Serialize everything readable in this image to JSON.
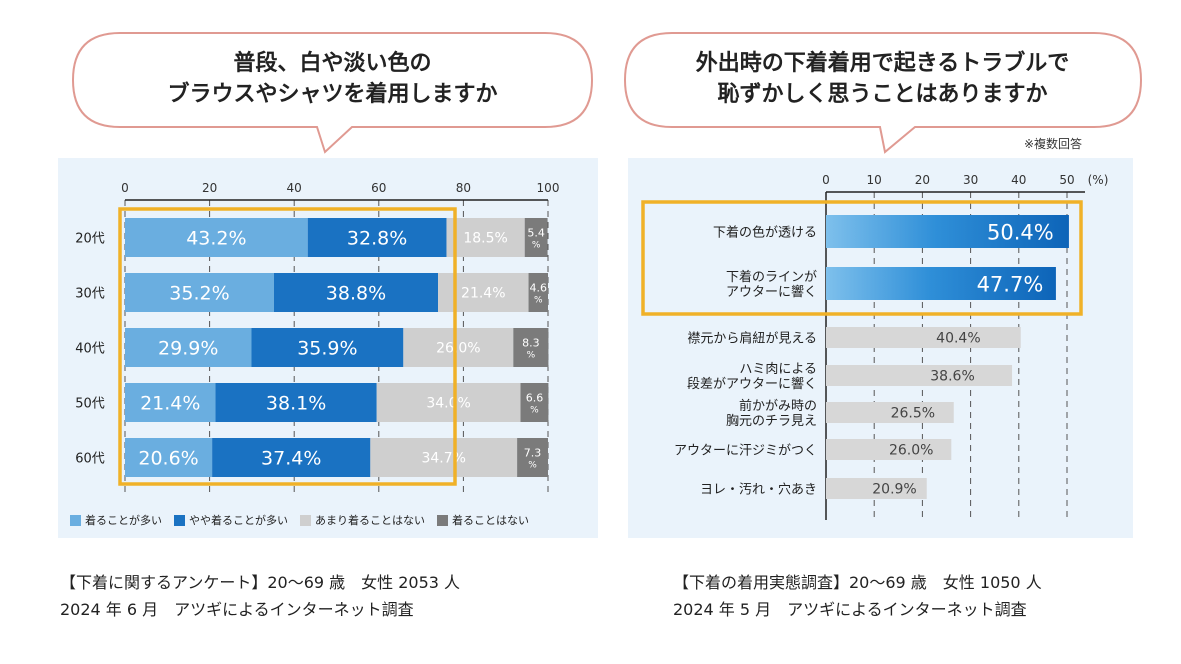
{
  "left": {
    "question_line1": "普段、白や淡い色の",
    "question_line2": "ブラウスやシャツを着用しますか",
    "source_line1": "【下着に関するアンケート】20〜69 歳　女性 2053 人",
    "source_line2": "2024 年 6 月　アツギによるインターネット調査"
  },
  "right": {
    "question_line1": "外出時の下着着用で起きるトラブルで",
    "question_line2": "恥ずかしく思うことはありますか",
    "note": "※複数回答",
    "source_line1": "【下着の着用実態調査】20〜69 歳　女性 1050 人",
    "source_line2": "2024 年 5 月　アツギによるインターネット調査"
  },
  "colors": {
    "light_blue": "#6aaee0",
    "blue": "#1a72c2",
    "light_gray": "#cfcfcf",
    "dark_gray": "#7b7b7b",
    "panel_bg": "#eaf3fb",
    "highlight": "#f0b128",
    "bubble_border": "#e09a92"
  },
  "chart_data": [
    {
      "type": "bar",
      "orientation": "horizontal",
      "stacked": true,
      "categories": [
        "20代",
        "30代",
        "40代",
        "50代",
        "60代"
      ],
      "series": [
        {
          "name": "着ることが多い",
          "values": [
            43.2,
            35.2,
            29.9,
            21.4,
            20.6
          ],
          "labels": [
            "43.2%",
            "35.2%",
            "29.9%",
            "21.4%",
            "20.6%"
          ]
        },
        {
          "name": "やや着ることが多い",
          "values": [
            32.8,
            38.8,
            35.9,
            38.1,
            37.4
          ],
          "labels": [
            "32.8%",
            "38.8%",
            "35.9%",
            "38.1%",
            "37.4%"
          ]
        },
        {
          "name": "あまり着ることはない",
          "values": [
            18.5,
            21.4,
            26.0,
            34.0,
            34.7
          ],
          "labels": [
            "18.5%",
            "21.4%",
            "26.0%",
            "34.0%",
            "34.7%"
          ]
        },
        {
          "name": "着ることはない",
          "values": [
            5.4,
            4.6,
            8.3,
            6.6,
            7.3
          ],
          "labels": [
            "5.4",
            "4.6",
            "8.3",
            "6.6",
            "7.3"
          ]
        }
      ],
      "percent_sign": "%",
      "xlim": [
        0,
        100
      ],
      "xticks": [
        "0",
        "20",
        "40",
        "60",
        "80",
        "100"
      ]
    },
    {
      "type": "bar",
      "orientation": "horizontal",
      "categories": [
        [
          "下着の色が透ける"
        ],
        [
          "下着のラインが",
          "アウターに響く"
        ],
        [
          "襟元から肩紐が見える"
        ],
        [
          "ハミ肉による",
          "段差がアウターに響く"
        ],
        [
          "前かがみ時の",
          "胸元のチラ見え"
        ],
        [
          "アウターに汗ジミがつく"
        ],
        [
          "ヨレ・汚れ・穴あき"
        ]
      ],
      "values": [
        50.4,
        47.7,
        40.4,
        38.6,
        26.5,
        26.0,
        20.9
      ],
      "labels": [
        "50.4%",
        "47.7%",
        "40.4%",
        "38.6%",
        "26.5%",
        "26.0%",
        "20.9%"
      ],
      "highlighted": [
        true,
        true,
        false,
        false,
        false,
        false,
        false
      ],
      "xlim": [
        0,
        50
      ],
      "xticks": [
        "0",
        "10",
        "20",
        "30",
        "40",
        "50"
      ],
      "unit": "(%)"
    }
  ]
}
